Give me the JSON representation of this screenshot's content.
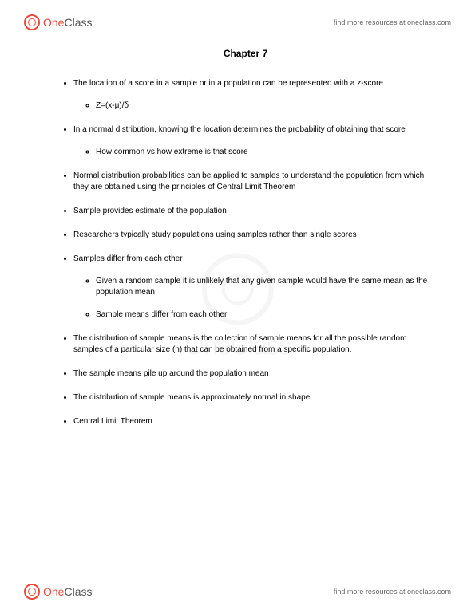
{
  "brand": {
    "name_part1": "One",
    "name_part2": "Class",
    "link_text": "find more resources at oneclass.com"
  },
  "document": {
    "title": "Chapter 7",
    "bullets": [
      {
        "text": "The location of a score in a sample or in a population can be represented with a z-score",
        "sub": [
          {
            "text": "Z=(x-μ)/δ"
          }
        ]
      },
      {
        "text": "In a normal distribution, knowing the location determines the probability of obtaining that score",
        "sub": [
          {
            "text": "How common vs how extreme is that score"
          }
        ]
      },
      {
        "text": "Normal distribution probabilities can be applied to samples to understand the population from which they are obtained using the principles of Central Limit Theorem"
      },
      {
        "text": "Sample provides estimate of the population"
      },
      {
        "text": "Researchers typically study populations using samples rather than single scores"
      },
      {
        "text": "Samples differ from each other",
        "sub": [
          {
            "text": "Given a random sample it is unlikely that any given sample would have the same mean as the population mean"
          },
          {
            "text": "Sample means differ from each other"
          }
        ]
      },
      {
        "text": "The distribution of sample means is the collection of sample means for all the possible random samples of a particular size (n) that can be obtained from a specific population."
      },
      {
        "text": "The sample means pile up around the population mean"
      },
      {
        "text": "The distribution of sample means is approximately normal in shape"
      },
      {
        "text": "Central Limit Theorem"
      }
    ]
  }
}
